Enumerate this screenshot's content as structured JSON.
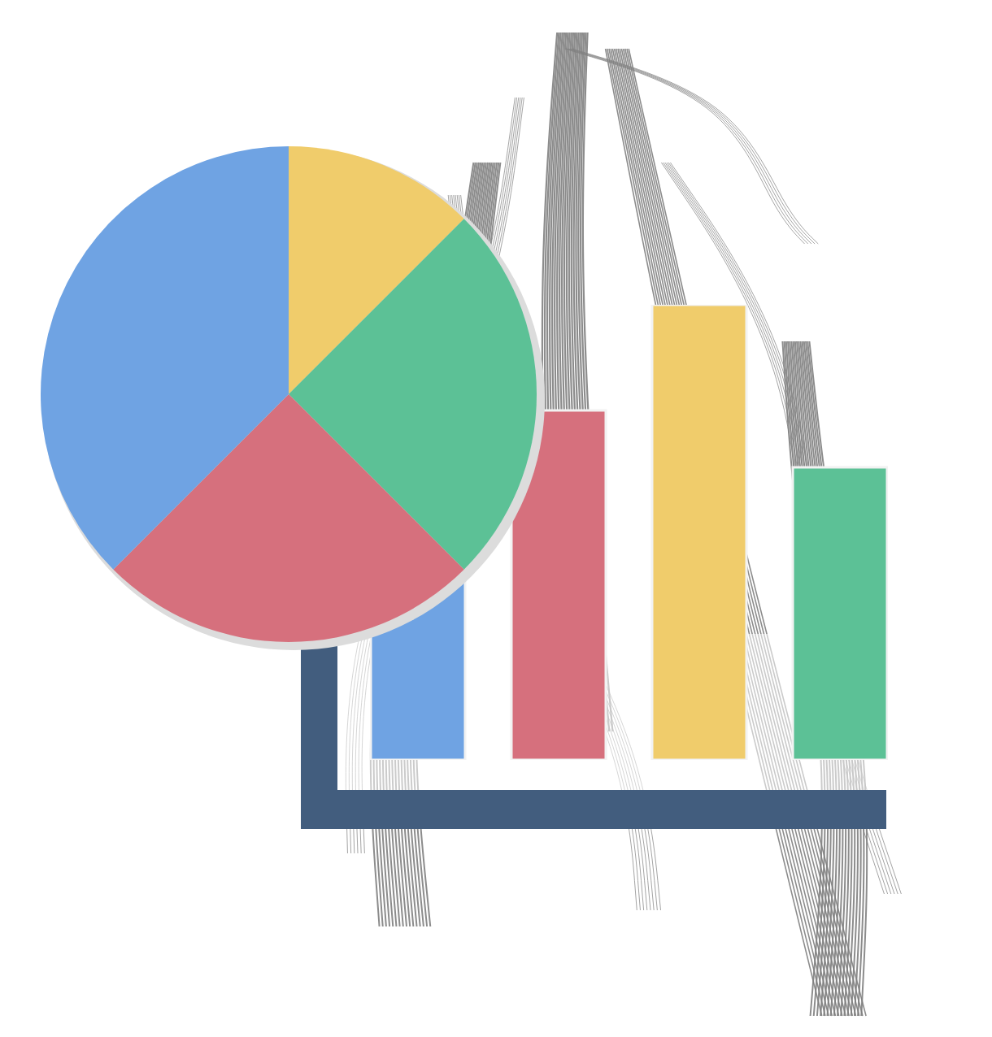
{
  "chart_data": [
    {
      "type": "pie",
      "values": [
        12.5,
        25,
        25,
        37.5
      ],
      "colors": [
        "#f0cc6b",
        "#5cc196",
        "#d6707d",
        "#6fa3e3"
      ]
    },
    {
      "type": "bar",
      "categories": [
        null,
        null,
        null,
        null
      ],
      "values": [
        30,
        43,
        56,
        36
      ],
      "colors": [
        "#6fa3e3",
        "#d6707d",
        "#f0cc6b",
        "#5cc196"
      ],
      "ylim": [
        0,
        56
      ],
      "tick_labels": false
    }
  ]
}
